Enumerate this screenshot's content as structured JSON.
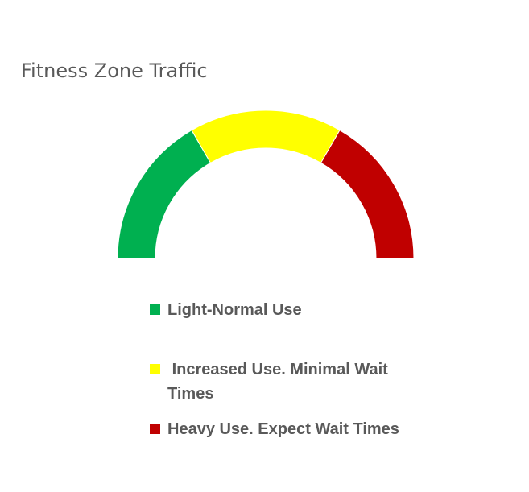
{
  "chart_data": {
    "type": "gauge",
    "title": "Fitness Zone Traffic",
    "series": [
      {
        "name": "Light-Normal Use",
        "value": 1,
        "color": "#00B050"
      },
      {
        "name": " Increased Use. Minimal Wait Times",
        "value": 1,
        "color": "#FFFF00"
      },
      {
        "name": "Heavy Use. Expect Wait Times",
        "value": 1,
        "color": "#C00000"
      }
    ],
    "legend_position": "bottom"
  }
}
